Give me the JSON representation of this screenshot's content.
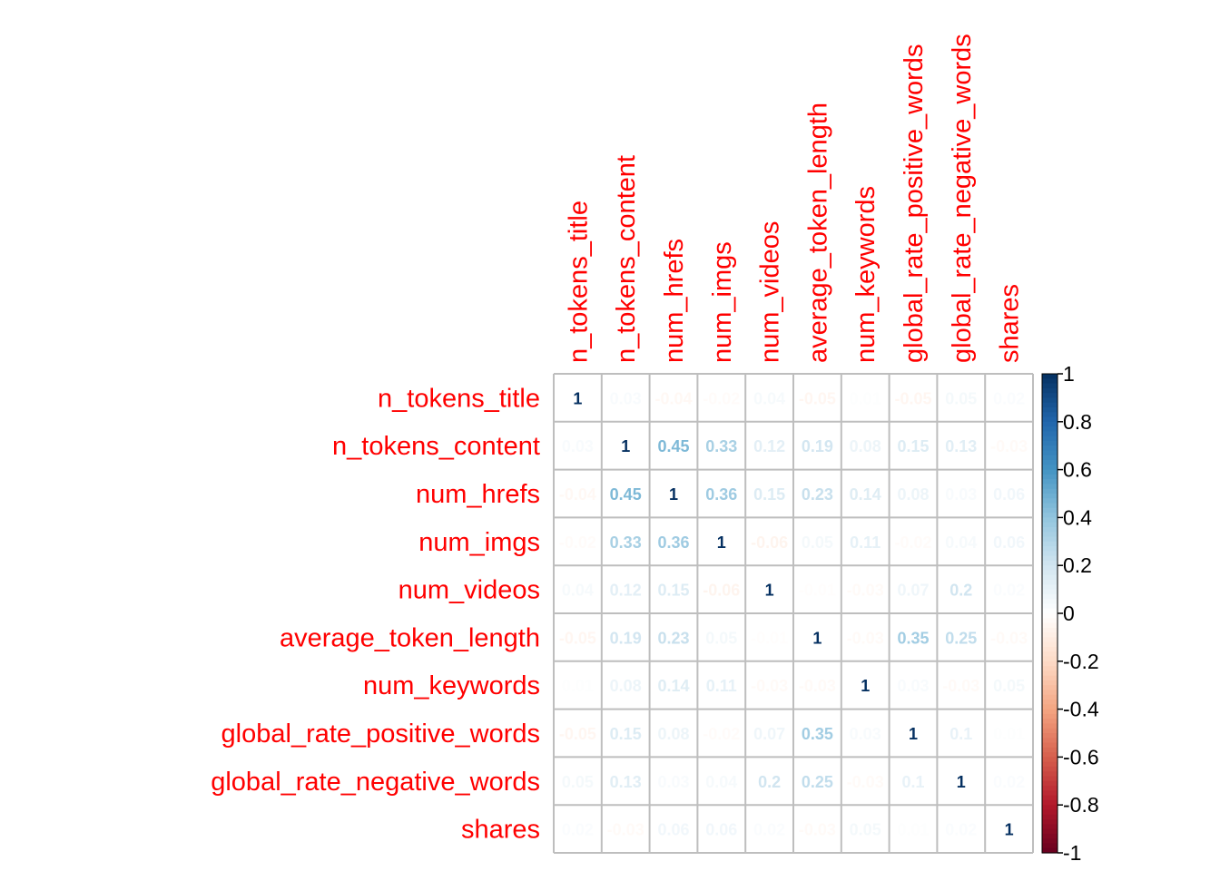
{
  "chart_data": {
    "type": "heatmap",
    "variables": [
      "n_tokens_title",
      "n_tokens_content",
      "num_hrefs",
      "num_imgs",
      "num_videos",
      "average_token_length",
      "num_keywords",
      "global_rate_positive_words",
      "global_rate_negative_words",
      "shares"
    ],
    "matrix": [
      [
        1,
        0.03,
        -0.04,
        -0.02,
        0.04,
        -0.05,
        0.01,
        -0.05,
        0.05,
        0.02
      ],
      [
        0.03,
        1,
        0.45,
        0.33,
        0.12,
        0.19,
        0.08,
        0.15,
        0.13,
        -0.03
      ],
      [
        -0.04,
        0.45,
        1,
        0.36,
        0.15,
        0.23,
        0.14,
        0.08,
        0.03,
        0.06
      ],
      [
        -0.02,
        0.33,
        0.36,
        1,
        -0.06,
        0.05,
        0.11,
        -0.02,
        0.04,
        0.06
      ],
      [
        0.04,
        0.12,
        0.15,
        -0.06,
        1,
        -0.01,
        -0.03,
        0.07,
        0.2,
        0.02
      ],
      [
        -0.05,
        0.19,
        0.23,
        0.05,
        -0.01,
        1,
        -0.03,
        0.35,
        0.25,
        -0.03
      ],
      [
        0.01,
        0.08,
        0.14,
        0.11,
        -0.03,
        -0.03,
        1,
        0.03,
        -0.03,
        0.05
      ],
      [
        -0.05,
        0.15,
        0.08,
        -0.02,
        0.07,
        0.35,
        0.03,
        1,
        0.1,
        0.01
      ],
      [
        0.05,
        0.13,
        0.03,
        0.04,
        0.2,
        0.25,
        -0.03,
        0.1,
        1,
        0.02
      ],
      [
        0.02,
        -0.03,
        0.06,
        0.06,
        0.02,
        -0.03,
        0.05,
        0.01,
        0.02,
        1
      ]
    ],
    "colorbar_ticks": [
      "1",
      "0.8",
      "0.6",
      "0.4",
      "0.2",
      "0",
      "-0.2",
      "-0.4",
      "-0.6",
      "-0.8",
      "-1"
    ],
    "value_range": [
      -1,
      1
    ],
    "label_color": "#ff0000",
    "grid_color": "#bebebe",
    "palette": [
      "#67001F",
      "#B2182B",
      "#D6604D",
      "#F4A582",
      "#FDDBC7",
      "#FFFFFF",
      "#D1E5F0",
      "#92C5DE",
      "#4393C3",
      "#2166AC",
      "#053061"
    ]
  }
}
